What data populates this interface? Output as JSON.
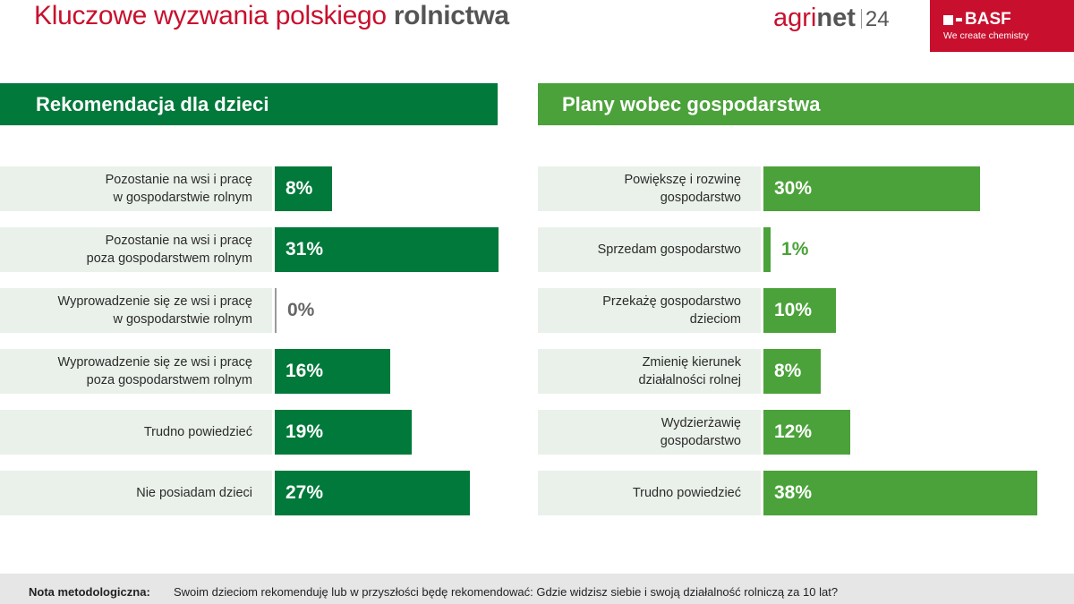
{
  "header": {
    "title_regular": "Kluczowe wyzwania polskiego ",
    "title_bold": "rolnictwa",
    "agrinet_logo": {
      "agri": "agri",
      "net": "net",
      "num": "24"
    },
    "basf_logo": {
      "name": "BASF",
      "tagline": "We create chemistry"
    }
  },
  "colors": {
    "dark_green": "#00793a",
    "light_green": "#4ba23a",
    "red": "#c8102e",
    "label_bg": "#eaf1ea"
  },
  "chart_data": [
    {
      "type": "bar",
      "orientation": "horizontal",
      "title": "Rekomendacja dla dzieci",
      "color": "#00793a",
      "categories": [
        "Pozostanie na wsi i pracę\nw gospodarstwie rolnym",
        "Pozostanie na wsi i pracę\npoza gospodarstwem rolnym",
        "Wyprowadzenie się ze wsi i pracę\nw gospodarstwie rolnym",
        "Wyprowadzenie się ze wsi i pracę\npoza gospodarstwem rolnym",
        "Trudno powiedzieć",
        "Nie posiadam dzieci"
      ],
      "values": [
        8,
        31,
        0,
        16,
        19,
        27
      ],
      "data_labels": [
        "8%",
        "31%",
        "0%",
        "16%",
        "19%",
        "27%"
      ],
      "unit": "%"
    },
    {
      "type": "bar",
      "orientation": "horizontal",
      "title": "Plany wobec gospodarstwa",
      "color": "#4ba23a",
      "categories": [
        "Powiększę i rozwinę\ngospodarstwo",
        "Sprzedam gospodarstwo",
        "Przekażę gospodarstwo\ndzieciom",
        "Zmienię kierunek\ndziałalności rolnej",
        "Wydzierżawię\ngospodarstwo",
        "Trudno powiedzieć"
      ],
      "values": [
        30,
        1,
        10,
        8,
        12,
        38
      ],
      "data_labels": [
        "30%",
        "1%",
        "10%",
        "8%",
        "12%",
        "38%"
      ],
      "unit": "%"
    }
  ],
  "footer": {
    "label": "Nota metodologiczna:",
    "text": "Swoim dzieciom rekomenduję lub w przyszłości będę rekomendować: Gdzie widzisz siebie i swoją działalność rolniczą za 10 lat?"
  }
}
